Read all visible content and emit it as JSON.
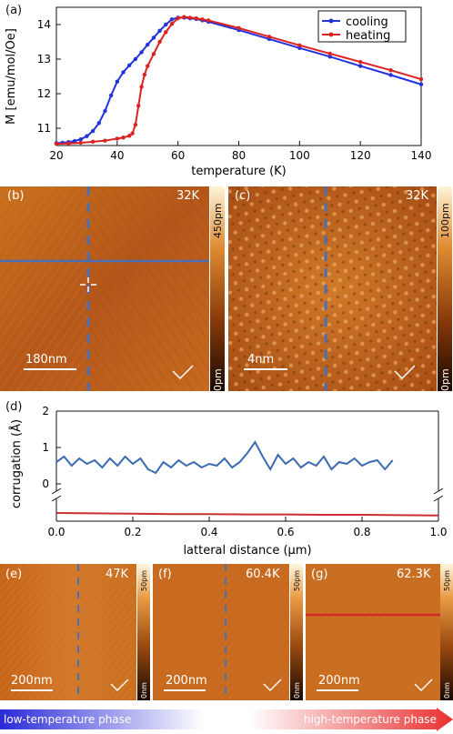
{
  "panel_a": {
    "label": "(a)",
    "chart_data": {
      "type": "line",
      "xlabel": "temperature (K)",
      "ylabel": "M [emu/mol/Oe]",
      "xlim": [
        20,
        140
      ],
      "ylim": [
        10.5,
        14.5
      ],
      "xticks": [
        20,
        40,
        60,
        80,
        100,
        120,
        140
      ],
      "yticks": [
        11,
        12,
        13,
        14
      ],
      "legend_position": "top-right",
      "series": [
        {
          "name": "cooling",
          "color": "#2233dd",
          "x": [
            20,
            22,
            24,
            26,
            28,
            30,
            32,
            34,
            36,
            38,
            40,
            42,
            44,
            46,
            48,
            50,
            52,
            54,
            56,
            58,
            60,
            62,
            64,
            66,
            68,
            70,
            80,
            90,
            100,
            110,
            120,
            130,
            140
          ],
          "y": [
            10.57,
            10.58,
            10.6,
            10.63,
            10.68,
            10.77,
            10.92,
            11.15,
            11.5,
            11.95,
            12.35,
            12.62,
            12.82,
            13.0,
            13.2,
            13.42,
            13.62,
            13.82,
            14.0,
            14.15,
            14.2,
            14.2,
            14.18,
            14.16,
            14.12,
            14.08,
            13.84,
            13.58,
            13.32,
            13.07,
            12.8,
            12.54,
            12.27
          ]
        },
        {
          "name": "heating",
          "color": "#dd2222",
          "x": [
            20,
            24,
            28,
            32,
            36,
            40,
            42,
            44,
            45,
            46,
            47,
            48,
            49,
            50,
            52,
            54,
            56,
            58,
            60,
            62,
            64,
            66,
            68,
            70,
            80,
            90,
            100,
            110,
            120,
            130,
            140
          ],
          "y": [
            10.55,
            10.56,
            10.58,
            10.61,
            10.64,
            10.7,
            10.73,
            10.78,
            10.85,
            11.1,
            11.65,
            12.2,
            12.55,
            12.8,
            13.15,
            13.5,
            13.78,
            14.02,
            14.18,
            14.22,
            14.2,
            14.18,
            14.15,
            14.12,
            13.9,
            13.65,
            13.4,
            13.16,
            12.92,
            12.68,
            12.42
          ]
        }
      ]
    }
  },
  "panel_b": {
    "label": "(b)",
    "temp": "32K",
    "scale": "180nm",
    "cbar_top": "450pm",
    "cbar_bottom": "0pm"
  },
  "panel_c": {
    "label": "(c)",
    "temp": "32K",
    "scale": "4nm",
    "cbar_top": "100pm",
    "cbar_bottom": "0pm"
  },
  "panel_d": {
    "label": "(d)",
    "chart_data": {
      "type": "line",
      "xlabel": "latteral distance (µm)",
      "ylabel": "corrugation (Å)",
      "xlim": [
        0,
        1.0
      ],
      "xticks": [
        "0.0",
        "0.2",
        "0.4",
        "0.6",
        "0.8",
        "1.0"
      ],
      "yticks": [
        "0",
        "1",
        "2"
      ],
      "broken_axis": true,
      "series": [
        {
          "name": "",
          "color": "#3a6ab0",
          "x": [
            0,
            0.02,
            0.04,
            0.06,
            0.08,
            0.1,
            0.12,
            0.14,
            0.16,
            0.18,
            0.2,
            0.22,
            0.24,
            0.26,
            0.28,
            0.3,
            0.32,
            0.34,
            0.36,
            0.38,
            0.4,
            0.42,
            0.44,
            0.46,
            0.48,
            0.5,
            0.52,
            0.54,
            0.56,
            0.58,
            0.6,
            0.62,
            0.64,
            0.66,
            0.68,
            0.7,
            0.72,
            0.74,
            0.76,
            0.78,
            0.8,
            0.82,
            0.84,
            0.86,
            0.88
          ],
          "y": [
            0.6,
            0.75,
            0.5,
            0.7,
            0.55,
            0.65,
            0.45,
            0.7,
            0.5,
            0.75,
            0.55,
            0.7,
            0.4,
            0.3,
            0.6,
            0.45,
            0.65,
            0.5,
            0.6,
            0.45,
            0.55,
            0.5,
            0.7,
            0.45,
            0.6,
            0.85,
            1.15,
            0.75,
            0.4,
            0.8,
            0.55,
            0.7,
            0.45,
            0.6,
            0.5,
            0.75,
            0.4,
            0.6,
            0.55,
            0.7,
            0.5,
            0.6,
            0.65,
            0.4,
            0.65
          ]
        },
        {
          "name": "",
          "color": "#cc2f2f",
          "x": [
            0,
            0.1,
            0.2,
            0.3,
            0.4,
            0.5,
            0.6,
            0.7,
            0.8,
            0.9,
            1.0
          ],
          "y": [
            0.1,
            0.09,
            0.08,
            0.07,
            0.07,
            0.06,
            0.06,
            0.05,
            0.05,
            0.04,
            0.03
          ]
        }
      ]
    }
  },
  "panel_e": {
    "label": "(e)",
    "temp": "47K",
    "scale": "200nm",
    "cbar_top": "50pm",
    "cbar_bottom": "0nm"
  },
  "panel_f": {
    "label": "(f)",
    "temp": "60.4K",
    "scale": "200nm",
    "cbar_top": "50pm",
    "cbar_bottom": "0nm"
  },
  "panel_g": {
    "label": "(g)",
    "temp": "62.3K",
    "scale": "200nm",
    "cbar_top": "50pm",
    "cbar_bottom": "0nm"
  },
  "phase_bar": {
    "left": "low-temperature phase",
    "right": "high-temperature phase",
    "left_color": "#2a2ad8",
    "right_color": "#e83030"
  }
}
